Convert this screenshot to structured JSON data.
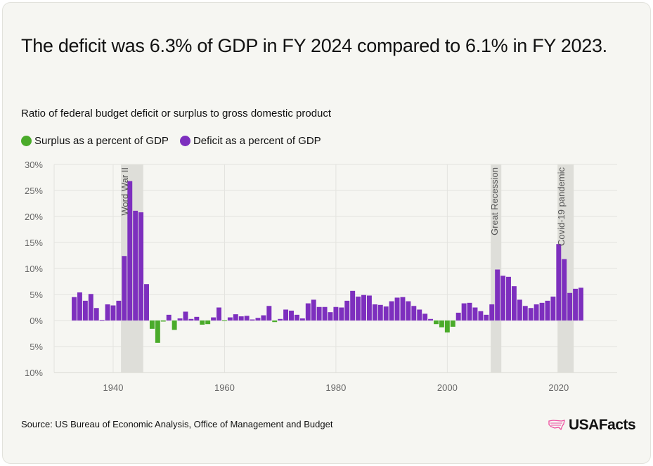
{
  "title": "The deficit was 6.3% of GDP in FY 2024 compared to 6.1% in FY 2023.",
  "source": "Source: US Bureau of Economic Analysis, Office of Management and Budget",
  "logo": {
    "text": "USAFacts",
    "icon": "us-map-flag-icon",
    "color": "#ee4fa0"
  },
  "chart_data": {
    "type": "bar",
    "title": "The deficit was 6.3% of GDP in FY 2024 compared to 6.1% in FY 2023.",
    "subtitle": "Ratio of federal budget deficit or surplus to gross domestic product",
    "xlabel": "",
    "ylabel": "",
    "ylim": [
      -10,
      30
    ],
    "xlim": [
      1929.4,
      2030.5
    ],
    "grid": true,
    "legend_position": "top-left",
    "legend": [
      {
        "name": "Surplus as a percent of GDP",
        "color": "#4aab2a"
      },
      {
        "name": "Deficit as a percent of GDP",
        "color": "#7d2fbe"
      }
    ],
    "y_ticks": [
      {
        "value": 30,
        "label": "30%"
      },
      {
        "value": 25,
        "label": "25%"
      },
      {
        "value": 20,
        "label": "20%"
      },
      {
        "value": 15,
        "label": "15%"
      },
      {
        "value": 10,
        "label": "10%"
      },
      {
        "value": 5,
        "label": "5%"
      },
      {
        "value": 0,
        "label": "0%"
      },
      {
        "value": -5,
        "label": "5%"
      },
      {
        "value": -10,
        "label": "10%"
      }
    ],
    "x_ticks": [
      {
        "value": 1940,
        "label": "1940"
      },
      {
        "value": 1960,
        "label": "1960"
      },
      {
        "value": 1980,
        "label": "1980"
      },
      {
        "value": 2000,
        "label": "2000"
      },
      {
        "value": 2020,
        "label": "2020"
      }
    ],
    "annotations": [
      {
        "label": "Word War II",
        "start": 1941.4,
        "end": 1945.4
      },
      {
        "label": "Great Recession",
        "start": 2007.8,
        "end": 2009.7
      },
      {
        "label": "Covid-19 pandemic",
        "start": 2019.8,
        "end": 2022.7
      }
    ],
    "note": "",
    "x": [
      1933,
      1934,
      1935,
      1936,
      1937,
      1938,
      1939,
      1940,
      1941,
      1942,
      1943,
      1944,
      1945,
      1946,
      1947,
      1948,
      1949,
      1950,
      1951,
      1952,
      1953,
      1954,
      1955,
      1956,
      1957,
      1958,
      1959,
      1960,
      1961,
      1962,
      1963,
      1964,
      1965,
      1966,
      1967,
      1968,
      1969,
      1970,
      1971,
      1972,
      1973,
      1974,
      1975,
      1976,
      1977,
      1978,
      1979,
      1980,
      1981,
      1982,
      1983,
      1984,
      1985,
      1986,
      1987,
      1988,
      1989,
      1990,
      1991,
      1992,
      1993,
      1994,
      1995,
      1996,
      1997,
      1998,
      1999,
      2000,
      2001,
      2002,
      2003,
      2004,
      2005,
      2006,
      2007,
      2008,
      2009,
      2010,
      2011,
      2012,
      2013,
      2014,
      2015,
      2016,
      2017,
      2018,
      2019,
      2020,
      2021,
      2022,
      2023,
      2024
    ],
    "values": [
      4.5,
      5.4,
      3.8,
      5.1,
      2.4,
      0.1,
      3.1,
      2.9,
      3.8,
      12.4,
      26.8,
      21.1,
      20.8,
      7.0,
      -1.6,
      -4.3,
      -0.2,
      1.1,
      -1.8,
      0.4,
      1.7,
      0.3,
      0.7,
      -0.8,
      -0.7,
      0.6,
      2.5,
      -0.1,
      0.6,
      1.2,
      0.8,
      0.9,
      0.2,
      0.5,
      1.0,
      2.8,
      -0.3,
      0.3,
      2.1,
      1.9,
      1.1,
      0.4,
      3.3,
      4.0,
      2.6,
      2.6,
      1.6,
      2.6,
      2.5,
      3.8,
      5.7,
      4.6,
      4.9,
      4.8,
      3.1,
      3.0,
      2.7,
      3.7,
      4.4,
      4.5,
      3.7,
      2.8,
      2.1,
      1.3,
      0.3,
      -0.7,
      -1.3,
      -2.3,
      -1.2,
      1.5,
      3.3,
      3.4,
      2.5,
      1.8,
      1.1,
      3.1,
      9.8,
      8.6,
      8.4,
      6.6,
      4.0,
      2.8,
      2.4,
      3.1,
      3.4,
      3.8,
      4.6,
      14.7,
      11.8,
      5.3,
      6.1,
      6.3
    ]
  }
}
